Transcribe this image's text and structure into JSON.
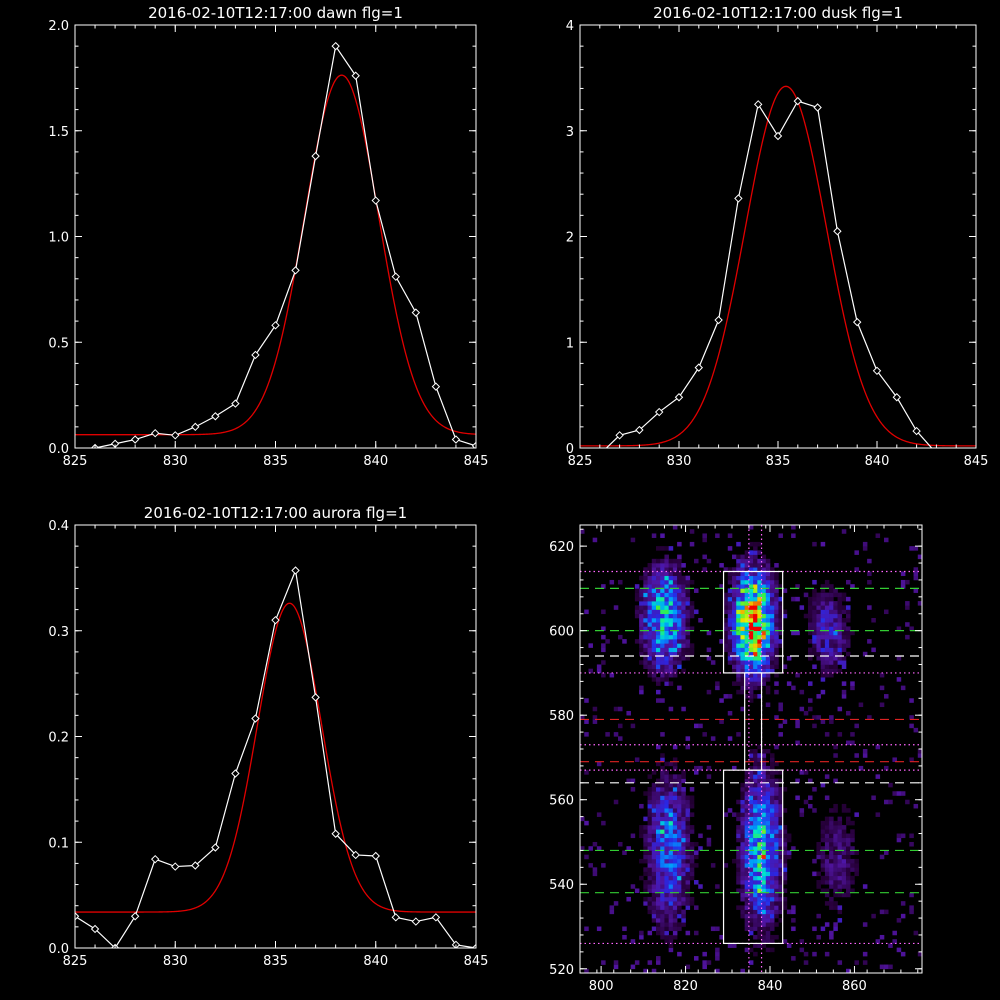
{
  "chart_data": [
    {
      "type": "line",
      "title": "2016-02-10T12:17:00 dawn flg=1",
      "xlim": [
        825,
        845
      ],
      "ylim": [
        0,
        2.0
      ],
      "xticks": [
        825,
        830,
        835,
        840,
        845
      ],
      "yticks": [
        0.0,
        0.5,
        1.0,
        1.5,
        2.0
      ],
      "xtick_labels": [
        "825",
        "830",
        "835",
        "840",
        "845"
      ],
      "ytick_labels": [
        "0.0",
        "0.5",
        "1.0",
        "1.5",
        "2.0"
      ],
      "series": [
        {
          "kind": "measured",
          "color": "#ffffff",
          "marker": "diamond",
          "x": [
            826,
            827,
            828,
            829,
            830,
            831,
            832,
            833,
            834,
            835,
            836,
            837,
            838,
            839,
            840,
            841,
            842,
            843,
            844,
            845
          ],
          "y": [
            0.0,
            0.02,
            0.04,
            0.07,
            0.06,
            0.1,
            0.15,
            0.21,
            0.44,
            0.58,
            0.84,
            1.38,
            1.9,
            1.76,
            1.17,
            0.81,
            0.64,
            0.29,
            0.04,
            0.01
          ]
        },
        {
          "kind": "fit",
          "color": "#e00000",
          "model": "gaussian",
          "amplitude": 1.7,
          "center": 838.3,
          "sigma": 1.85,
          "offset": 0.063
        }
      ]
    },
    {
      "type": "line",
      "title": "2016-02-10T12:17:00 dusk flg=1",
      "xlim": [
        825,
        845
      ],
      "ylim": [
        0,
        4
      ],
      "xticks": [
        825,
        830,
        835,
        840,
        845
      ],
      "yticks": [
        0,
        1,
        2,
        3,
        4
      ],
      "xtick_labels": [
        "825",
        "830",
        "835",
        "840",
        "845"
      ],
      "ytick_labels": [
        "0",
        "1",
        "2",
        "3",
        "4"
      ],
      "series": [
        {
          "kind": "measured",
          "color": "#ffffff",
          "marker": "diamond",
          "x": [
            826,
            827,
            828,
            829,
            830,
            831,
            832,
            833,
            834,
            835,
            836,
            837,
            838,
            839,
            840,
            841,
            842,
            843,
            844
          ],
          "y": [
            -0.06,
            0.12,
            0.17,
            0.34,
            0.48,
            0.76,
            1.21,
            2.36,
            3.25,
            2.95,
            3.28,
            3.22,
            2.05,
            1.19,
            0.73,
            0.48,
            0.16,
            -0.05,
            -0.03
          ]
        },
        {
          "kind": "fit",
          "color": "#e00000",
          "model": "gaussian",
          "amplitude": 3.4,
          "center": 835.4,
          "sigma": 2.05,
          "offset": 0.02
        }
      ]
    },
    {
      "type": "line",
      "title": "2016-02-10T12:17:00 aurora flg=1",
      "xlim": [
        825,
        845
      ],
      "ylim": [
        0,
        0.4
      ],
      "xticks": [
        825,
        830,
        835,
        840,
        845
      ],
      "yticks": [
        0.0,
        0.1,
        0.2,
        0.3,
        0.4
      ],
      "xtick_labels": [
        "825",
        "830",
        "835",
        "840",
        "845"
      ],
      "ytick_labels": [
        "0.0",
        "0.1",
        "0.2",
        "0.3",
        "0.4"
      ],
      "series": [
        {
          "kind": "measured",
          "color": "#ffffff",
          "marker": "diamond",
          "x": [
            825,
            826,
            827,
            828,
            829,
            830,
            831,
            832,
            833,
            834,
            835,
            836,
            837,
            838,
            839,
            840,
            841,
            842,
            843,
            844,
            845
          ],
          "y": [
            0.03,
            0.018,
            0.0,
            0.03,
            0.084,
            0.077,
            0.078,
            0.095,
            0.165,
            0.217,
            0.31,
            0.357,
            0.237,
            0.108,
            0.088,
            0.087,
            0.029,
            0.025,
            0.029,
            0.003,
            0.0
          ]
        },
        {
          "kind": "fit",
          "color": "#e00000",
          "model": "gaussian",
          "amplitude": 0.292,
          "center": 835.7,
          "sigma": 1.6,
          "offset": 0.034
        }
      ]
    },
    {
      "type": "heatmap",
      "title": "",
      "xlim": [
        795,
        876
      ],
      "ylim": [
        519,
        625
      ],
      "xticks": [
        800,
        820,
        840,
        860
      ],
      "yticks": [
        520,
        540,
        560,
        580,
        600,
        620
      ],
      "xtick_labels": [
        "800",
        "820",
        "840",
        "860"
      ],
      "ytick_labels": [
        "520",
        "540",
        "560",
        "580",
        "600",
        "620"
      ],
      "blobs": [
        {
          "x": 815,
          "y": 603,
          "sx": 3.5,
          "sy": 8,
          "amp": 0.55
        },
        {
          "x": 836,
          "y": 602,
          "sx": 3.2,
          "sy": 8,
          "amp": 0.95
        },
        {
          "x": 854,
          "y": 600,
          "sx": 3.5,
          "sy": 7,
          "amp": 0.25
        },
        {
          "x": 816,
          "y": 548,
          "sx": 3.5,
          "sy": 12,
          "amp": 0.38
        },
        {
          "x": 838,
          "y": 548,
          "sx": 3.2,
          "sy": 12,
          "amp": 0.55
        },
        {
          "x": 856,
          "y": 546,
          "sx": 3.5,
          "sy": 9,
          "amp": 0.18
        }
      ],
      "boxes": [
        {
          "x0": 829,
          "x1": 843,
          "y0": 590,
          "y1": 614,
          "color": "#ffffff"
        },
        {
          "x0": 829,
          "x1": 843,
          "y0": 526,
          "y1": 567,
          "color": "#ffffff"
        },
        {
          "x0": 834,
          "x1": 838,
          "y0": 567,
          "y1": 590,
          "color": "#ffffff"
        }
      ],
      "hlines": [
        {
          "y": 614,
          "style": "dotted",
          "color": "#ff66ff"
        },
        {
          "y": 610,
          "style": "dashed",
          "color": "#33cc33"
        },
        {
          "y": 600,
          "style": "dashed",
          "color": "#33cc33"
        },
        {
          "y": 594,
          "style": "dashed",
          "color": "#ffffff"
        },
        {
          "y": 590,
          "style": "dotted",
          "color": "#ff66ff"
        },
        {
          "y": 579,
          "style": "dashed",
          "color": "#dd2222"
        },
        {
          "y": 573,
          "style": "dotted",
          "color": "#ff66ff"
        },
        {
          "y": 569,
          "style": "dashed",
          "color": "#dd2222"
        },
        {
          "y": 567,
          "style": "dotted",
          "color": "#ff66ff"
        },
        {
          "y": 564,
          "style": "dashed",
          "color": "#ffffff"
        },
        {
          "y": 548,
          "style": "dashed",
          "color": "#33cc33"
        },
        {
          "y": 538,
          "style": "dashed",
          "color": "#33cc33"
        },
        {
          "y": 526,
          "style": "dotted",
          "color": "#ff66ff"
        }
      ],
      "vlines": [
        {
          "x": 835,
          "style": "dotted",
          "color": "#ff66ff"
        },
        {
          "x": 838,
          "style": "dotted",
          "color": "#ff66ff"
        }
      ]
    }
  ]
}
